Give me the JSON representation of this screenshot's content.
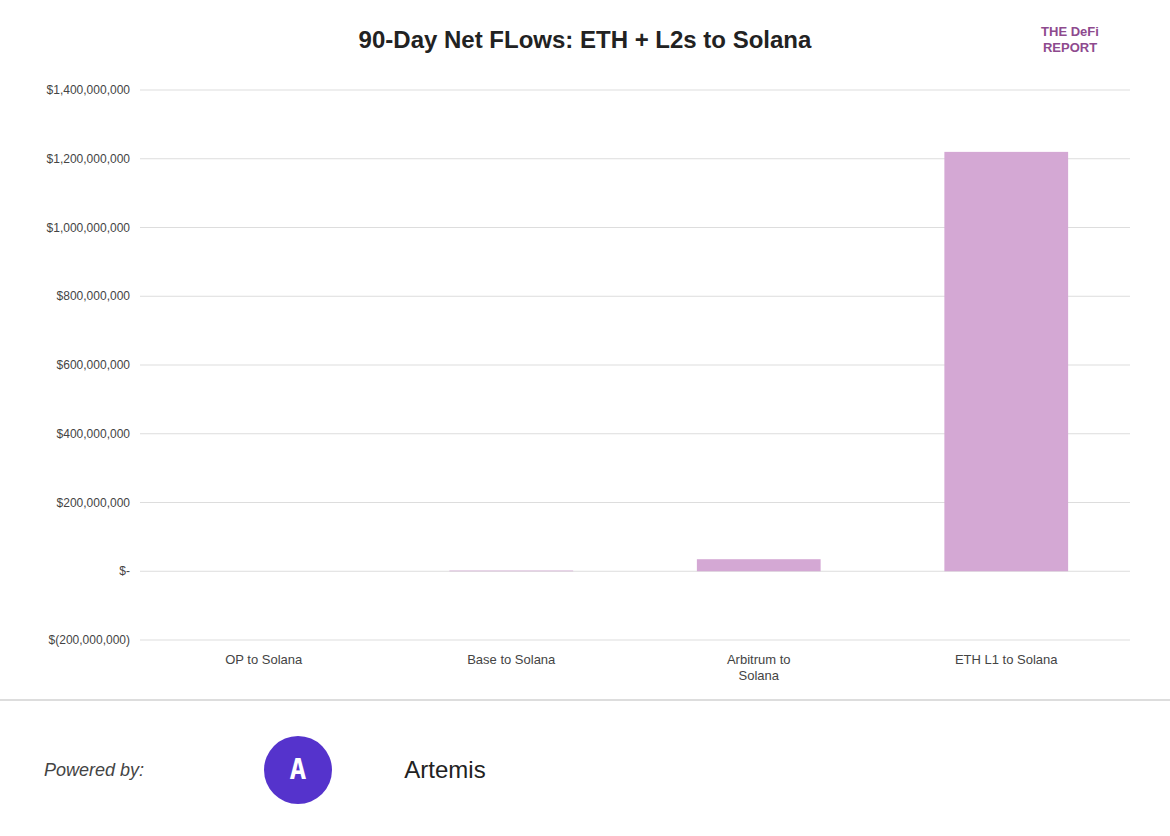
{
  "chart_data": {
    "type": "bar",
    "title": "90-Day Net FLows: ETH + L2s to Solana",
    "categories": [
      "OP to Solana",
      "Base to Solana",
      "Arbitrum to\nSolana",
      "ETH L1 to Solana"
    ],
    "values": [
      0,
      2000000,
      35000000,
      1220000000
    ],
    "color": "#d4a8d4",
    "ylim": [
      -200000000,
      1400000000
    ],
    "yticks": [
      {
        "value": -200000000,
        "label": "$(200,000,000)"
      },
      {
        "value": 0,
        "label": "$-"
      },
      {
        "value": 200000000,
        "label": "$200,000,000"
      },
      {
        "value": 400000000,
        "label": "$400,000,000"
      },
      {
        "value": 600000000,
        "label": "$600,000,000"
      },
      {
        "value": 800000000,
        "label": "$800,000,000"
      },
      {
        "value": 1000000000,
        "label": "$1,000,000,000"
      },
      {
        "value": 1200000000,
        "label": "$1,200,000,000"
      },
      {
        "value": 1400000000,
        "label": "$1,400,000,000"
      }
    ],
    "grid": true,
    "annotations": [
      "THE DeFi\nREPORT",
      "Powered by:",
      "A",
      "Artemis"
    ]
  }
}
